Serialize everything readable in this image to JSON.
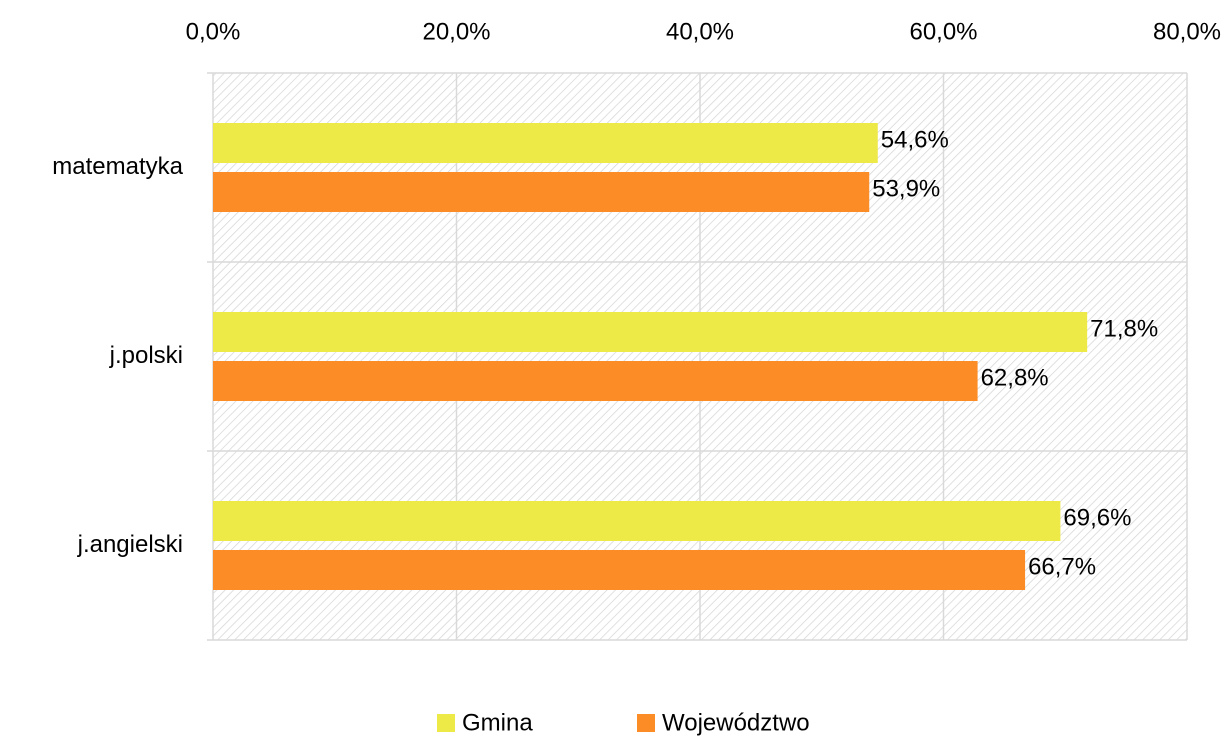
{
  "chart_data": {
    "type": "barh",
    "categories": [
      "matematyka",
      "j.polski",
      "j.angielski"
    ],
    "series": [
      {
        "name": "Gmina",
        "color": "#ede946",
        "values": [
          54.6,
          71.8,
          69.6
        ],
        "value_labels": [
          "54,6%",
          "71,8%",
          "69,6%"
        ]
      },
      {
        "name": "Województwo",
        "color": "#fb8c26",
        "values": [
          53.9,
          62.8,
          66.7
        ],
        "value_labels": [
          "53,9%",
          "62,8%",
          "66,7%"
        ]
      }
    ],
    "xlim": [
      0,
      80
    ],
    "xticks": [
      {
        "value": 0,
        "label": "0,0%"
      },
      {
        "value": 20,
        "label": "20,0%"
      },
      {
        "value": 40,
        "label": "40,0%"
      },
      {
        "value": 60,
        "label": "60,0%"
      },
      {
        "value": 80,
        "label": "80,0%"
      }
    ],
    "grid": true,
    "legend": "bottom"
  }
}
